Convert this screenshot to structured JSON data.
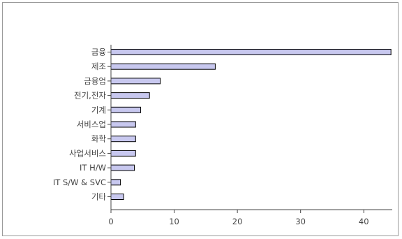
{
  "chart_data": {
    "type": "bar",
    "orientation": "horizontal",
    "title": "",
    "xlabel": "",
    "ylabel": "",
    "categories": [
      "금융",
      "제조",
      "금융업",
      "전기,전자",
      "기계",
      "서비스업",
      "화학",
      "사업서비스",
      "IT H/W",
      "IT S/W & SVC",
      "기타"
    ],
    "values": [
      44.3,
      16.5,
      7.8,
      6.1,
      4.7,
      3.9,
      3.9,
      3.9,
      3.7,
      1.5,
      2.0
    ],
    "xlim": [
      0,
      44.5
    ],
    "xticks": [
      "0",
      "10",
      "20",
      "30",
      "40"
    ],
    "grid": false,
    "bar_color": "#c8c8ef"
  }
}
